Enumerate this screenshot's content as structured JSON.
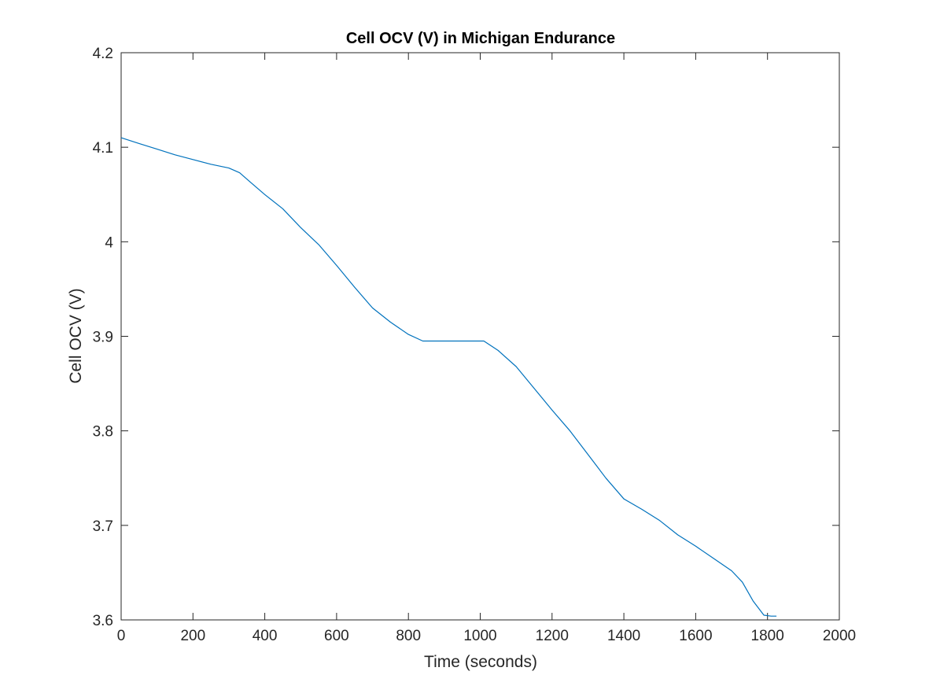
{
  "chart_data": {
    "type": "line",
    "title": "Cell OCV (V) in Michigan Endurance",
    "xlabel": "Time (seconds)",
    "ylabel": "Cell OCV (V)",
    "xlim": [
      0,
      2000
    ],
    "ylim": [
      3.6,
      4.2
    ],
    "xticks": [
      0,
      200,
      400,
      600,
      800,
      1000,
      1200,
      1400,
      1600,
      1800,
      2000
    ],
    "yticks": [
      3.6,
      3.7,
      3.8,
      3.9,
      4.0,
      4.1,
      4.2
    ],
    "xtick_labels": [
      "0",
      "200",
      "400",
      "600",
      "800",
      "1000",
      "1200",
      "1400",
      "1600",
      "1800",
      "2000"
    ],
    "ytick_labels": [
      "3.6",
      "3.7",
      "3.8",
      "3.9",
      "4",
      "4.1",
      "4.2"
    ],
    "grid": false,
    "colors": {
      "series": "#0072BD",
      "axes": "#262626"
    },
    "series": [
      {
        "x": [
          0,
          50,
          100,
          150,
          200,
          250,
          300,
          330,
          360,
          400,
          450,
          500,
          550,
          600,
          650,
          700,
          750,
          800,
          840,
          900,
          950,
          1010,
          1050,
          1100,
          1150,
          1200,
          1250,
          1300,
          1350,
          1400,
          1450,
          1500,
          1550,
          1600,
          1650,
          1700,
          1730,
          1760,
          1790,
          1810,
          1825
        ],
        "y": [
          4.11,
          4.104,
          4.098,
          4.092,
          4.087,
          4.082,
          4.078,
          4.073,
          4.063,
          4.05,
          4.035,
          4.015,
          3.997,
          3.975,
          3.952,
          3.93,
          3.915,
          3.902,
          3.895,
          3.895,
          3.895,
          3.895,
          3.885,
          3.868,
          3.845,
          3.822,
          3.8,
          3.775,
          3.75,
          3.728,
          3.717,
          3.705,
          3.69,
          3.678,
          3.665,
          3.652,
          3.64,
          3.62,
          3.605,
          3.604,
          3.604
        ]
      }
    ]
  }
}
